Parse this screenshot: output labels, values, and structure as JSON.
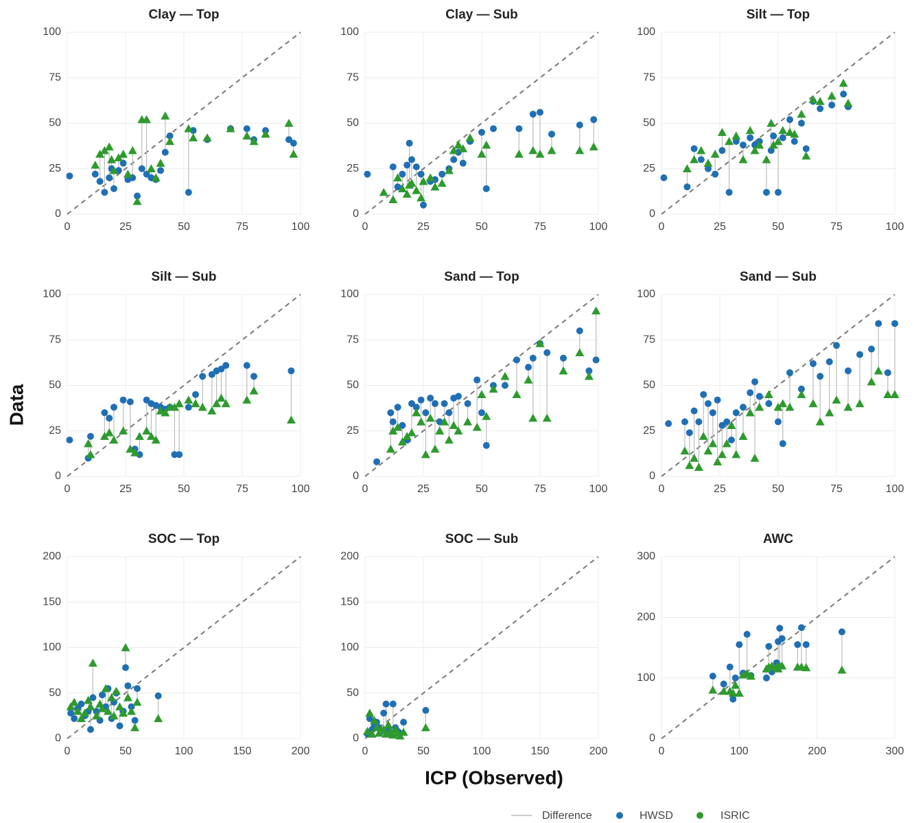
{
  "xlabel": "ICP (Observed)",
  "ylabel": "Data",
  "difference_label": "Difference",
  "chart_data": [
    {
      "type": "scatter",
      "title": "Clay — Top",
      "xlim": [
        0,
        100
      ],
      "ylim": [
        0,
        100
      ],
      "xticks": [
        0,
        25,
        50,
        75,
        100
      ],
      "yticks": [
        0,
        25,
        50,
        75,
        100
      ],
      "grid": true,
      "x": [
        1,
        12,
        14,
        16,
        18,
        19,
        20,
        22,
        24,
        26,
        28,
        30,
        32,
        34,
        36,
        38,
        40,
        42,
        44,
        52,
        54,
        60,
        70,
        77,
        80,
        85,
        95,
        97
      ],
      "series": [
        {
          "name": "HWSD",
          "color": "#1f6fb5",
          "marker": "circle",
          "values": [
            21,
            22,
            18,
            12,
            20,
            25,
            14,
            24,
            28,
            19,
            20,
            10,
            25,
            22,
            20,
            19,
            24,
            34,
            43,
            12,
            46,
            41,
            47,
            47,
            41,
            46,
            41,
            39
          ]
        },
        {
          "name": "ISRIC",
          "color": "#2e9a2e",
          "marker": "triangle",
          "values": [
            null,
            27,
            33,
            35,
            37,
            30,
            24,
            31,
            33,
            22,
            35,
            7,
            52,
            52,
            25,
            20,
            28,
            54,
            40,
            47,
            42,
            42,
            47,
            43,
            40,
            44,
            50,
            33
          ]
        }
      ]
    },
    {
      "type": "scatter",
      "title": "Clay — Sub",
      "xlim": [
        0,
        100
      ],
      "ylim": [
        0,
        100
      ],
      "xticks": [
        0,
        25,
        50,
        75,
        100
      ],
      "yticks": [
        0,
        25,
        50,
        75,
        100
      ],
      "grid": true,
      "x": [
        1,
        8,
        12,
        14,
        16,
        18,
        19,
        20,
        22,
        24,
        25,
        28,
        30,
        33,
        36,
        38,
        40,
        42,
        45,
        50,
        52,
        55,
        66,
        72,
        75,
        80,
        92,
        98
      ],
      "series": [
        {
          "name": "HWSD",
          "color": "#1f6fb5",
          "marker": "circle",
          "values": [
            22,
            null,
            26,
            15,
            22,
            27,
            39,
            30,
            26,
            22,
            5,
            18,
            19,
            22,
            25,
            30,
            34,
            28,
            40,
            45,
            14,
            47,
            47,
            55,
            56,
            44,
            49,
            52
          ]
        },
        {
          "name": "ISRIC",
          "color": "#2e9a2e",
          "marker": "triangle",
          "values": [
            null,
            12,
            8,
            20,
            14,
            11,
            16,
            17,
            13,
            9,
            18,
            20,
            15,
            17,
            24,
            35,
            38,
            36,
            42,
            33,
            38,
            null,
            33,
            35,
            33,
            35,
            35,
            37
          ]
        }
      ]
    },
    {
      "type": "scatter",
      "title": "Silt — Top",
      "xlim": [
        0,
        100
      ],
      "ylim": [
        0,
        100
      ],
      "xticks": [
        0,
        25,
        50,
        75,
        100
      ],
      "yticks": [
        0,
        25,
        50,
        75,
        100
      ],
      "grid": true,
      "x": [
        1,
        11,
        14,
        17,
        20,
        23,
        26,
        29,
        32,
        35,
        38,
        40,
        42,
        45,
        47,
        48,
        50,
        52,
        55,
        57,
        60,
        62,
        65,
        68,
        73,
        78,
        80
      ],
      "series": [
        {
          "name": "HWSD",
          "color": "#1f6fb5",
          "marker": "circle",
          "values": [
            20,
            15,
            36,
            30,
            25,
            22,
            35,
            12,
            40,
            38,
            42,
            38,
            40,
            12,
            35,
            43,
            12,
            42,
            52,
            40,
            50,
            36,
            62,
            58,
            60,
            66,
            59
          ]
        },
        {
          "name": "ISRIC",
          "color": "#2e9a2e",
          "marker": "triangle",
          "values": [
            null,
            25,
            30,
            35,
            28,
            33,
            45,
            40,
            43,
            30,
            46,
            35,
            38,
            30,
            50,
            38,
            40,
            46,
            45,
            44,
            55,
            32,
            63,
            62,
            65,
            72,
            61
          ]
        }
      ]
    },
    {
      "type": "scatter",
      "title": "Silt — Sub",
      "xlim": [
        0,
        100
      ],
      "ylim": [
        0,
        100
      ],
      "xticks": [
        0,
        25,
        50,
        75,
        100
      ],
      "yticks": [
        0,
        25,
        50,
        75,
        100
      ],
      "grid": true,
      "x": [
        1,
        9,
        10,
        16,
        18,
        20,
        24,
        27,
        29,
        31,
        34,
        36,
        38,
        40,
        42,
        44,
        46,
        48,
        52,
        55,
        58,
        62,
        64,
        66,
        68,
        77,
        80,
        96
      ],
      "series": [
        {
          "name": "HWSD",
          "color": "#1f6fb5",
          "marker": "circle",
          "values": [
            20,
            10,
            22,
            35,
            32,
            38,
            42,
            41,
            15,
            12,
            42,
            40,
            39,
            38,
            37,
            38,
            12,
            12,
            38,
            45,
            55,
            56,
            58,
            59,
            61,
            61,
            55,
            58
          ]
        },
        {
          "name": "ISRIC",
          "color": "#2e9a2e",
          "marker": "triangle",
          "values": [
            null,
            18,
            12,
            22,
            24,
            20,
            25,
            15,
            13,
            22,
            25,
            22,
            20,
            36,
            35,
            38,
            38,
            40,
            42,
            40,
            38,
            36,
            40,
            43,
            40,
            42,
            47,
            31
          ]
        }
      ]
    },
    {
      "type": "scatter",
      "title": "Sand — Top",
      "xlim": [
        0,
        100
      ],
      "ylim": [
        0,
        100
      ],
      "xticks": [
        0,
        25,
        50,
        75,
        100
      ],
      "yticks": [
        0,
        25,
        50,
        75,
        100
      ],
      "grid": true,
      "x": [
        5,
        11,
        12,
        14,
        16,
        18,
        20,
        22,
        24,
        26,
        28,
        30,
        32,
        34,
        36,
        38,
        40,
        44,
        48,
        50,
        52,
        55,
        60,
        65,
        70,
        72,
        75,
        78,
        85,
        92,
        96,
        99
      ],
      "series": [
        {
          "name": "HWSD",
          "color": "#1f6fb5",
          "marker": "circle",
          "values": [
            8,
            35,
            30,
            38,
            28,
            20,
            40,
            38,
            42,
            35,
            43,
            40,
            30,
            40,
            35,
            43,
            44,
            40,
            53,
            35,
            17,
            50,
            50,
            64,
            60,
            65,
            73,
            68,
            65,
            80,
            58,
            64
          ]
        },
        {
          "name": "ISRIC",
          "color": "#2e9a2e",
          "marker": "triangle",
          "values": [
            null,
            15,
            25,
            27,
            19,
            22,
            24,
            35,
            30,
            12,
            32,
            15,
            25,
            30,
            20,
            28,
            25,
            30,
            27,
            45,
            33,
            48,
            55,
            45,
            53,
            32,
            73,
            32,
            58,
            68,
            55,
            91
          ]
        }
      ]
    },
    {
      "type": "scatter",
      "title": "Sand — Sub",
      "xlim": [
        0,
        100
      ],
      "ylim": [
        0,
        100
      ],
      "xticks": [
        0,
        25,
        50,
        75,
        100
      ],
      "yticks": [
        0,
        25,
        50,
        75,
        100
      ],
      "grid": true,
      "x": [
        3,
        10,
        12,
        14,
        16,
        18,
        20,
        22,
        24,
        26,
        28,
        30,
        32,
        35,
        38,
        40,
        42,
        46,
        50,
        52,
        55,
        60,
        65,
        68,
        72,
        75,
        80,
        85,
        90,
        93,
        97,
        100
      ],
      "series": [
        {
          "name": "HWSD",
          "color": "#1f6fb5",
          "marker": "circle",
          "values": [
            29,
            30,
            24,
            36,
            30,
            45,
            40,
            35,
            42,
            28,
            30,
            20,
            35,
            38,
            46,
            52,
            44,
            40,
            30,
            18,
            57,
            48,
            62,
            55,
            63,
            72,
            58,
            67,
            70,
            84,
            57,
            84
          ]
        },
        {
          "name": "ISRIC",
          "color": "#2e9a2e",
          "marker": "triangle",
          "values": [
            null,
            14,
            6,
            10,
            5,
            22,
            14,
            18,
            8,
            12,
            18,
            28,
            12,
            22,
            35,
            10,
            38,
            45,
            38,
            40,
            38,
            45,
            40,
            30,
            35,
            42,
            38,
            40,
            52,
            58,
            45,
            45
          ]
        }
      ]
    },
    {
      "type": "scatter",
      "title": "SOC — Top",
      "xlim": [
        0,
        200
      ],
      "ylim": [
        0,
        200
      ],
      "xticks": [
        0,
        50,
        100,
        150,
        200
      ],
      "yticks": [
        0,
        50,
        100,
        150,
        200
      ],
      "grid": true,
      "x": [
        3,
        6,
        9,
        12,
        15,
        18,
        20,
        22,
        25,
        28,
        30,
        33,
        35,
        38,
        40,
        42,
        45,
        48,
        50,
        52,
        55,
        58,
        60,
        78
      ],
      "series": [
        {
          "name": "HWSD",
          "color": "#1f6fb5",
          "marker": "circle",
          "values": [
            28,
            22,
            33,
            38,
            25,
            30,
            10,
            45,
            30,
            20,
            48,
            35,
            55,
            22,
            40,
            50,
            14,
            30,
            78,
            58,
            35,
            20,
            55,
            47
          ]
        },
        {
          "name": "ISRIC",
          "color": "#2e9a2e",
          "marker": "triangle",
          "values": [
            35,
            40,
            30,
            22,
            28,
            42,
            35,
            83,
            25,
            38,
            33,
            55,
            30,
            45,
            25,
            52,
            35,
            28,
            100,
            45,
            30,
            12,
            40,
            22
          ]
        }
      ]
    },
    {
      "type": "scatter",
      "title": "SOC — Sub",
      "xlim": [
        0,
        200
      ],
      "ylim": [
        0,
        200
      ],
      "xticks": [
        0,
        50,
        100,
        150,
        200
      ],
      "yticks": [
        0,
        50,
        100,
        150,
        200
      ],
      "grid": true,
      "x": [
        2,
        4,
        6,
        8,
        10,
        12,
        14,
        16,
        18,
        20,
        22,
        24,
        26,
        28,
        30,
        33,
        52
      ],
      "series": [
        {
          "name": "HWSD",
          "color": "#1f6fb5",
          "marker": "circle",
          "values": [
            5,
            22,
            10,
            15,
            18,
            12,
            8,
            28,
            38,
            10,
            6,
            38,
            12,
            8,
            6,
            18,
            31
          ]
        },
        {
          "name": "ISRIC",
          "color": "#2e9a2e",
          "marker": "triangle",
          "values": [
            8,
            28,
            5,
            20,
            12,
            6,
            10,
            10,
            5,
            15,
            8,
            4,
            10,
            6,
            3,
            7,
            12
          ]
        }
      ]
    },
    {
      "type": "scatter",
      "title": "AWC",
      "xlim": [
        0,
        300
      ],
      "ylim": [
        0,
        300
      ],
      "xticks": [
        0,
        100,
        200,
        300
      ],
      "yticks": [
        0,
        100,
        200,
        300
      ],
      "grid": true,
      "x": [
        66,
        80,
        88,
        92,
        95,
        100,
        105,
        110,
        115,
        135,
        138,
        142,
        148,
        150,
        152,
        155,
        175,
        180,
        186,
        232
      ],
      "series": [
        {
          "name": "HWSD",
          "color": "#1f6fb5",
          "marker": "circle",
          "values": [
            103,
            90,
            118,
            65,
            100,
            155,
            108,
            172,
            104,
            100,
            152,
            110,
            125,
            160,
            182,
            165,
            155,
            183,
            155,
            176
          ]
        },
        {
          "name": "ISRIC",
          "color": "#2e9a2e",
          "marker": "triangle",
          "values": [
            80,
            78,
            78,
            75,
            88,
            75,
            105,
            107,
            103,
            115,
            118,
            120,
            118,
            115,
            120,
            120,
            118,
            118,
            117,
            113
          ]
        }
      ]
    }
  ]
}
